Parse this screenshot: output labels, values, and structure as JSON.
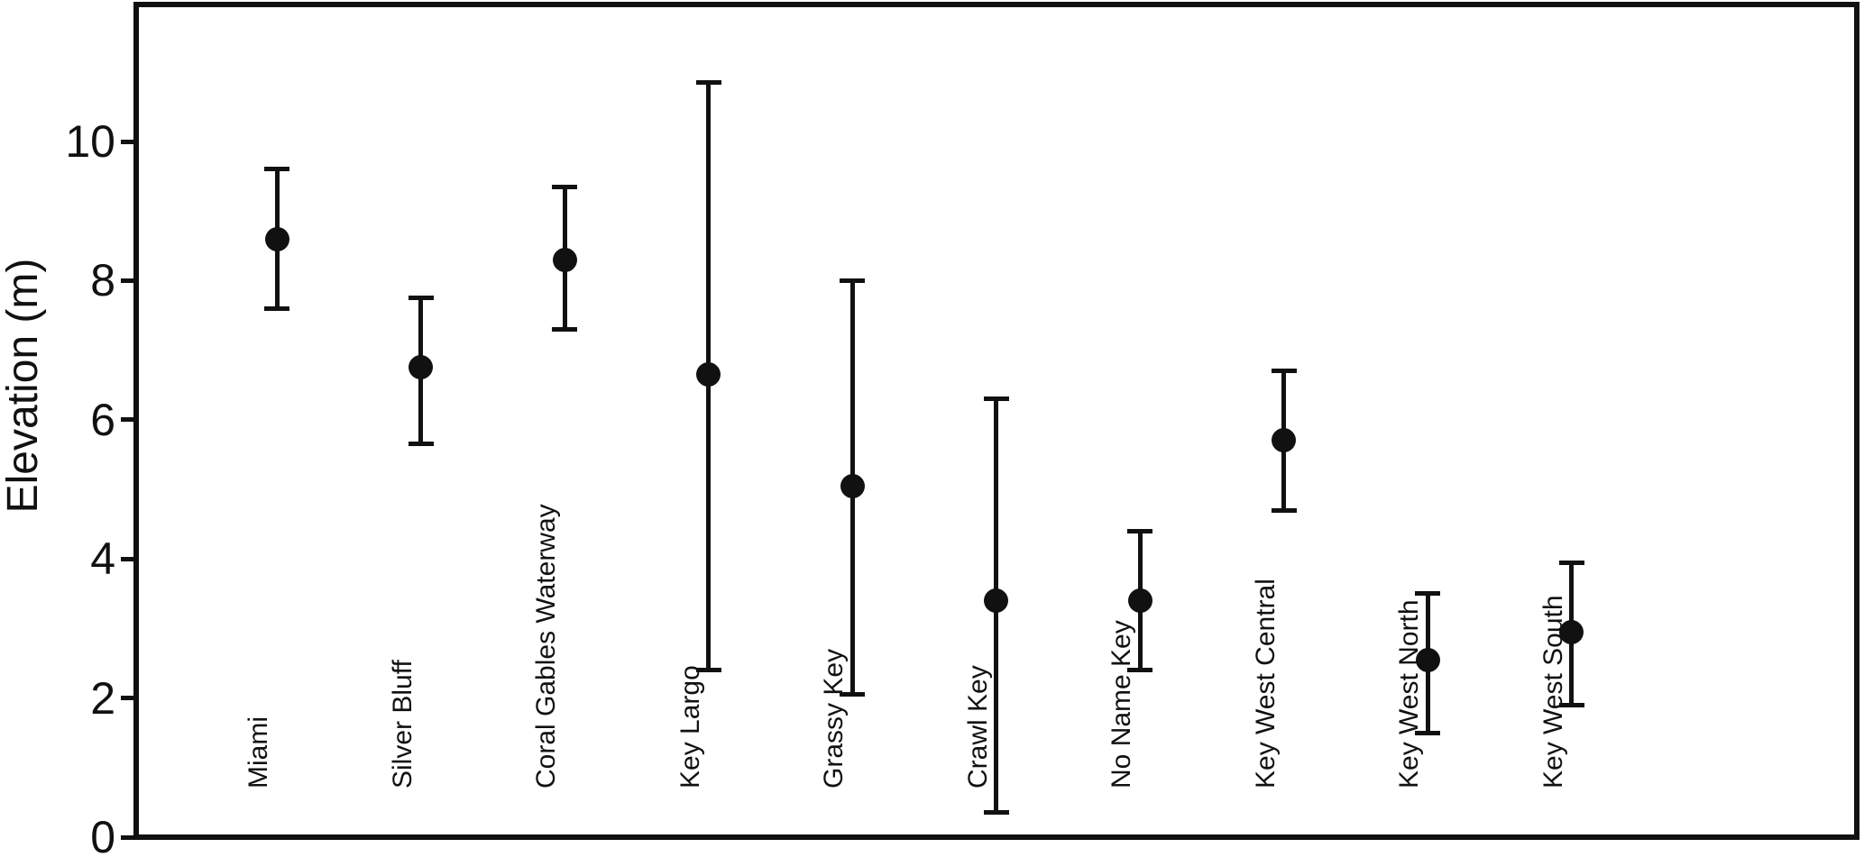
{
  "chart_data": {
    "type": "scatter",
    "subtype": "point-with-error-bars",
    "title": "",
    "xlabel": "",
    "ylabel": "Elevation (m)",
    "ylim": [
      0,
      12
    ],
    "yticks": [
      0,
      2,
      4,
      6,
      8,
      10
    ],
    "grid": false,
    "legend_position": "none",
    "marker": "filled-circle",
    "categories": [
      "Miami",
      "Silver Bluff",
      "Coral Gables Waterway",
      "Key Largo",
      "Grassy Key",
      "Crawl Key",
      "No Name Key",
      "Key West Central",
      "Key West North",
      "Key West South"
    ],
    "series": [
      {
        "name": "Elevation (m)",
        "points": [
          {
            "label": "Miami",
            "value": 8.6,
            "upper": 9.6,
            "lower": 7.6
          },
          {
            "label": "Silver Bluff",
            "value": 6.75,
            "upper": 7.75,
            "lower": 5.65
          },
          {
            "label": "Coral Gables Waterway",
            "value": 8.3,
            "upper": 9.35,
            "lower": 7.3
          },
          {
            "label": "Key Largo",
            "value": 6.65,
            "upper": 10.85,
            "lower": 2.4
          },
          {
            "label": "Grassy Key",
            "value": 5.05,
            "upper": 8.0,
            "lower": 2.05
          },
          {
            "label": "Crawl Key",
            "value": 3.4,
            "upper": 6.3,
            "lower": 0.35
          },
          {
            "label": "No Name Key",
            "value": 3.4,
            "upper": 4.4,
            "lower": 2.4
          },
          {
            "label": "Key West Central",
            "value": 5.7,
            "upper": 6.7,
            "lower": 4.7
          },
          {
            "label": "Key West North",
            "value": 2.55,
            "upper": 3.5,
            "lower": 1.5
          },
          {
            "label": "Key West South",
            "value": 2.95,
            "upper": 3.95,
            "lower": 1.9
          }
        ]
      }
    ],
    "colors": {
      "marker": "#111111",
      "error_bar": "#111111",
      "axis": "#111111",
      "background": "#ffffff"
    }
  }
}
